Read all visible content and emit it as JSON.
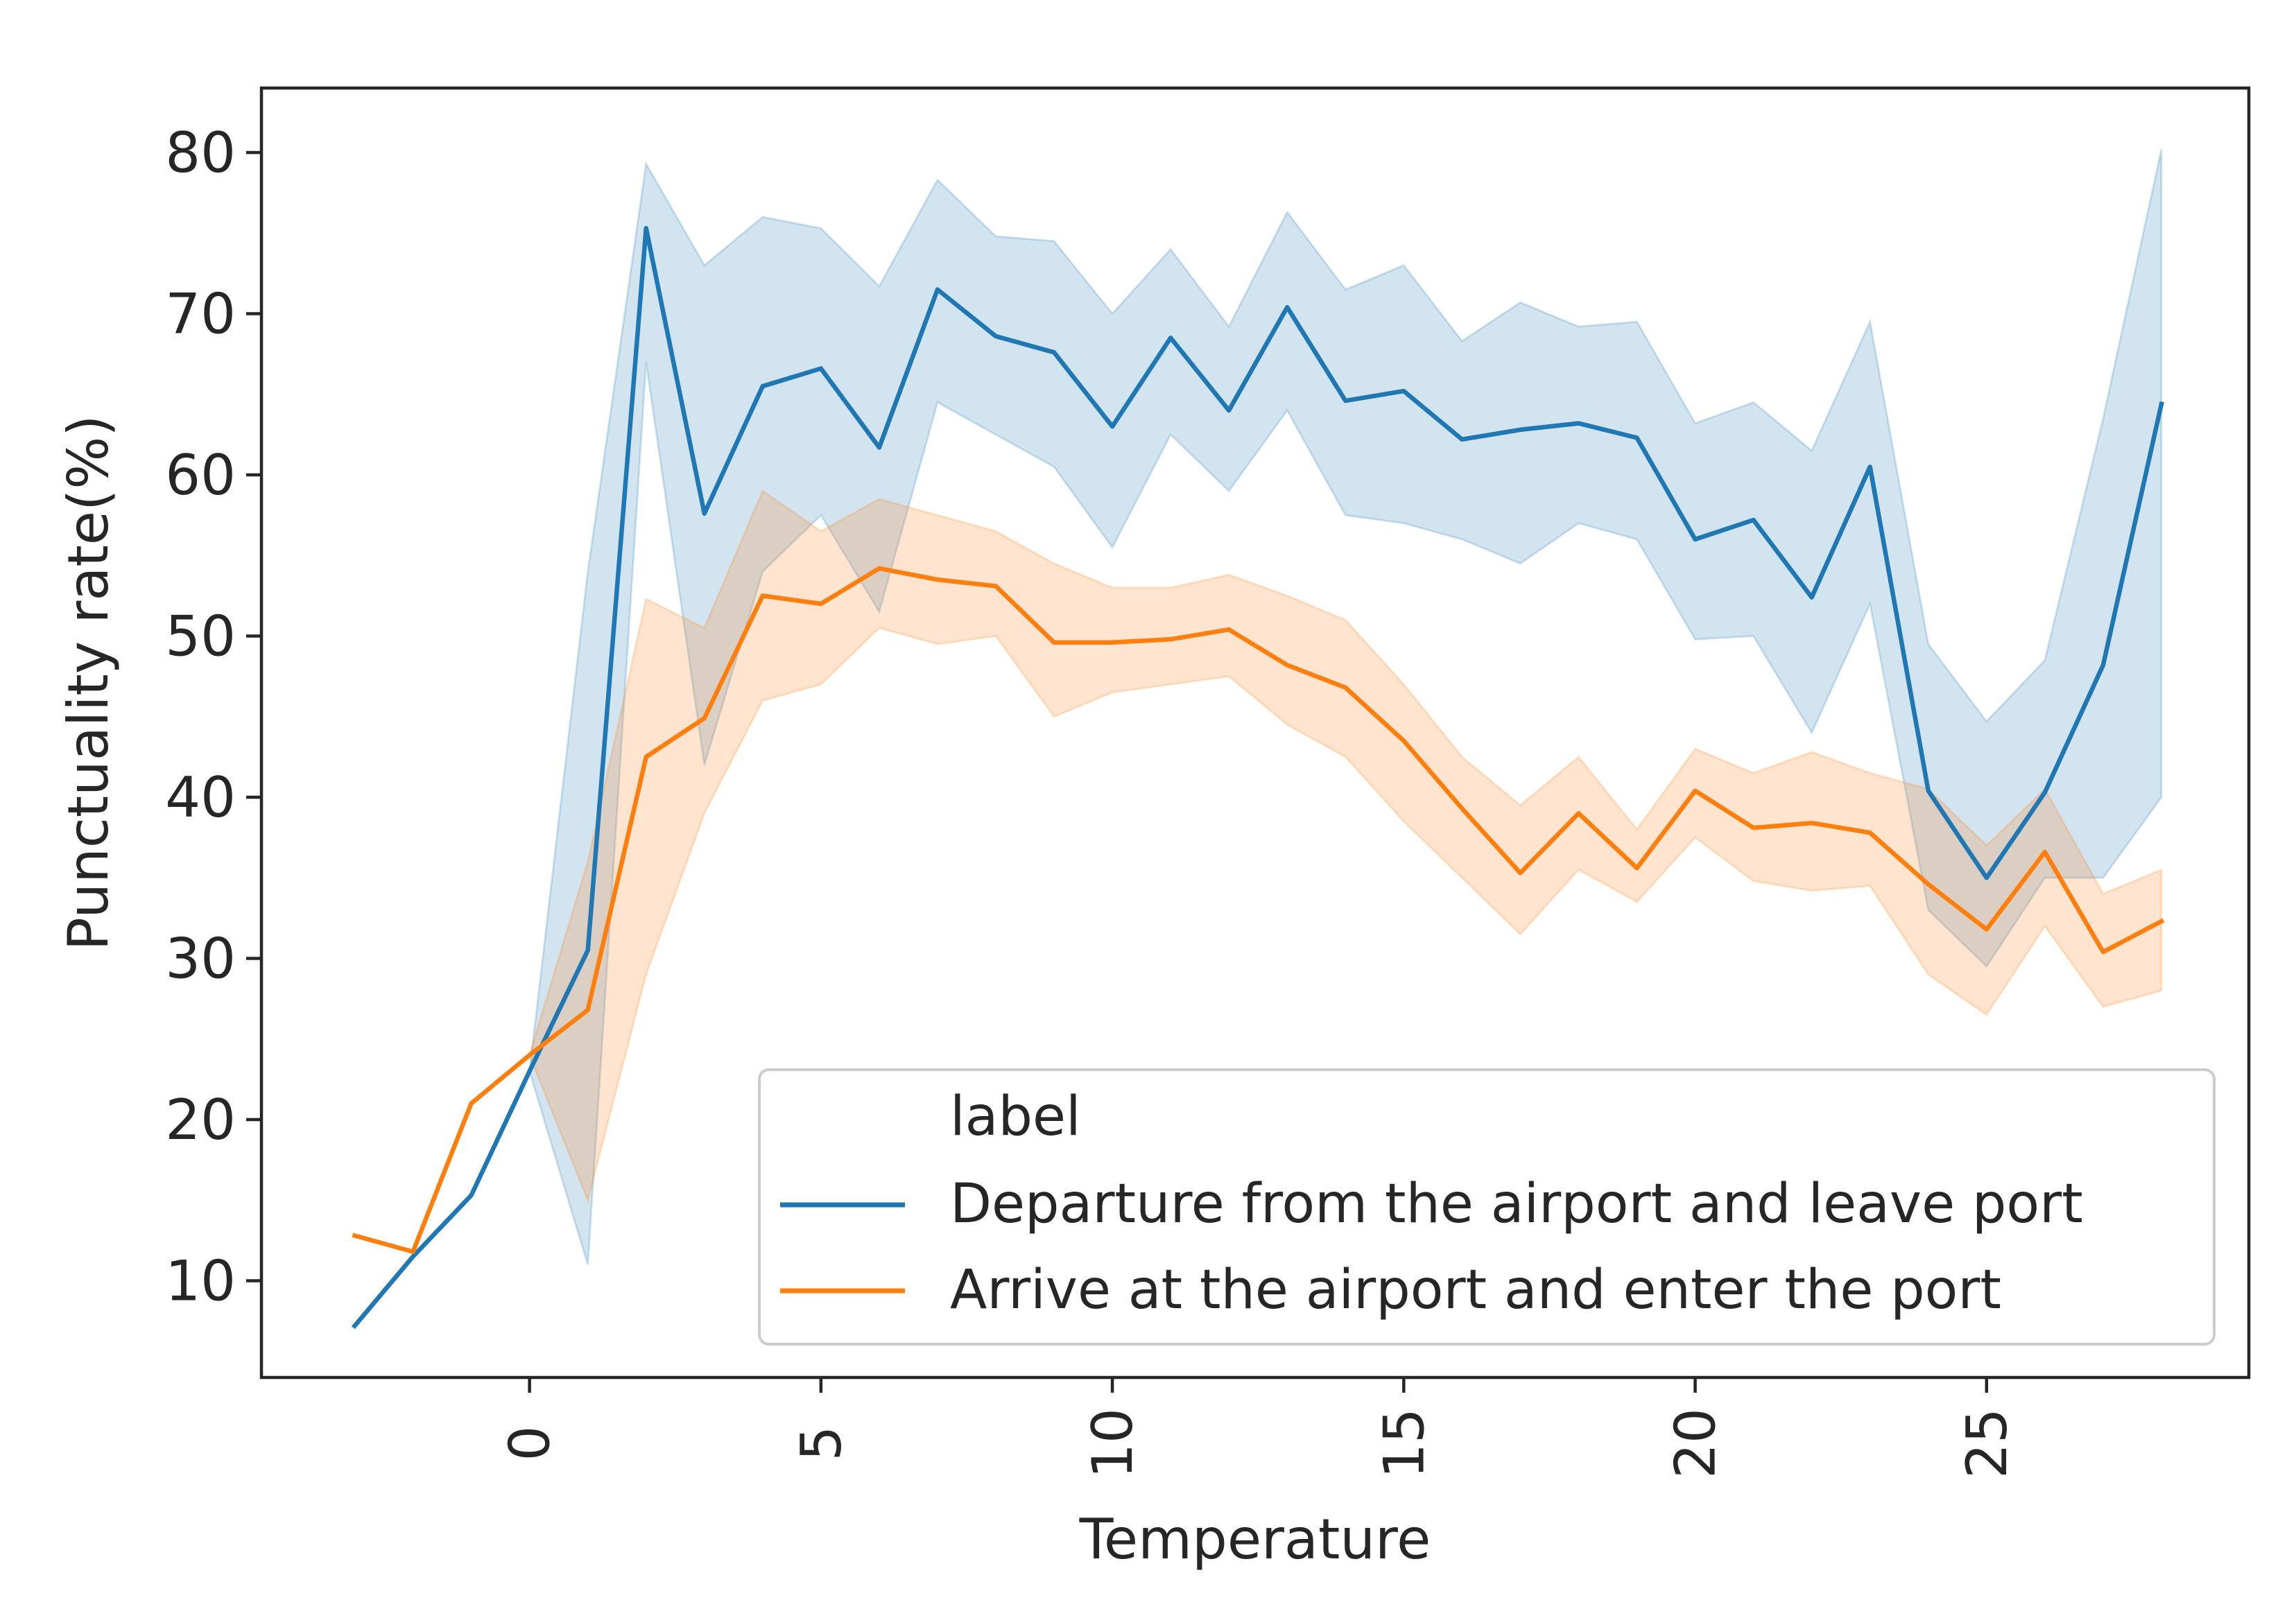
{
  "chart_data": {
    "type": "line",
    "xlabel": "Temperature",
    "ylabel": "Punctuality rate(%)",
    "xlim": [
      -4.6,
      29.5
    ],
    "ylim": [
      4,
      84
    ],
    "xticks": [
      0,
      5,
      10,
      15,
      20,
      25
    ],
    "yticks": [
      10,
      20,
      30,
      40,
      50,
      60,
      70,
      80
    ],
    "legend": {
      "title": "label",
      "placement": "lower-right"
    },
    "x": [
      -3,
      -2,
      -1,
      0,
      1,
      2,
      3,
      4,
      5,
      6,
      7,
      8,
      9,
      10,
      11,
      12,
      13,
      14,
      15,
      16,
      17,
      18,
      19,
      20,
      21,
      22,
      23,
      24,
      25,
      26,
      27,
      28
    ],
    "series": [
      {
        "name": "Departure from the airport and leave port",
        "color": "#1f77b4",
        "x": [
          -3,
          -2,
          -1,
          0,
          1,
          2,
          3,
          4,
          5,
          6,
          7,
          8,
          9,
          10,
          11,
          12,
          13,
          14,
          15,
          16,
          17,
          18,
          19,
          20,
          21,
          22,
          23,
          24,
          25,
          26,
          27,
          28
        ],
        "values": [
          7.2,
          11.5,
          15.3,
          23,
          30.5,
          75.3,
          57.6,
          65.5,
          66.6,
          61.7,
          71.5,
          68.6,
          67.6,
          63,
          68.5,
          64,
          70.4,
          64.6,
          65.2,
          62.2,
          62.8,
          63.2,
          62.3,
          56,
          57.2,
          52.4,
          60.5,
          40.4,
          35,
          40.3,
          48.2,
          64.4
        ],
        "ci_lower": [
          7.2,
          11.5,
          15.3,
          23,
          11,
          67,
          42,
          54,
          57.5,
          51.5,
          64.5,
          62.5,
          60.5,
          55.5,
          62.5,
          59,
          64,
          57.5,
          57,
          56,
          54.5,
          57,
          56,
          49.8,
          50,
          44,
          52,
          33,
          29.5,
          35,
          35,
          40
        ],
        "ci_upper": [
          7.2,
          11.5,
          15.3,
          23,
          54,
          79.3,
          73,
          76,
          75.3,
          71.7,
          78.3,
          74.8,
          74.5,
          70,
          74,
          69.2,
          76.3,
          71.5,
          73,
          68.3,
          70.7,
          69.2,
          69.5,
          63.2,
          64.5,
          61.5,
          69.5,
          49.5,
          44.7,
          48.5,
          63.5,
          80.2
        ]
      },
      {
        "name": "Arrive at the airport and enter the port",
        "color": "#ff7f0e",
        "x": [
          -3,
          -2,
          -1,
          0,
          1,
          2,
          3,
          4,
          5,
          6,
          7,
          8,
          9,
          10,
          11,
          12,
          13,
          14,
          15,
          16,
          17,
          18,
          19,
          20,
          21,
          22,
          23,
          24,
          25,
          26,
          27,
          28
        ],
        "values": [
          12.8,
          11.8,
          21,
          24,
          26.8,
          42.5,
          44.9,
          52.5,
          52,
          54.2,
          53.5,
          53.1,
          49.6,
          49.6,
          49.8,
          50.4,
          48.2,
          46.8,
          43.5,
          39.3,
          35.3,
          39,
          35.6,
          40.4,
          38.1,
          38.4,
          37.8,
          34.6,
          31.8,
          36.6,
          30.4,
          32.3
        ],
        "ci_lower": [
          12.8,
          11.8,
          21,
          24,
          15,
          29,
          39,
          46,
          47,
          50.5,
          49.5,
          50,
          45,
          46.5,
          47,
          47.5,
          44.5,
          42.5,
          38.5,
          35,
          31.5,
          35.5,
          33.5,
          37.5,
          34.8,
          34.2,
          34.5,
          29,
          26.5,
          32,
          27,
          28
        ],
        "ci_upper": [
          12.8,
          11.8,
          21,
          24,
          36,
          52.3,
          50.5,
          59,
          56.5,
          58.5,
          57.5,
          56.5,
          54.5,
          53,
          53,
          53.8,
          52.5,
          51,
          47,
          42.5,
          39.5,
          42.5,
          38,
          43,
          41.5,
          42.8,
          41.5,
          40.5,
          37,
          40.5,
          34,
          35.5
        ]
      }
    ]
  }
}
